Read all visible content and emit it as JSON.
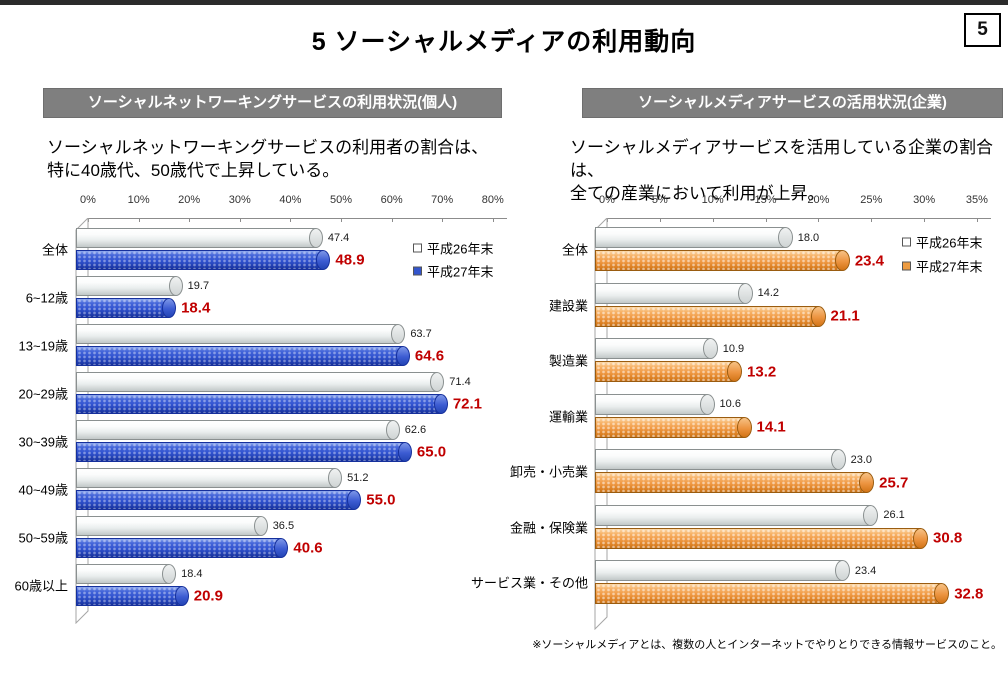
{
  "page": {
    "title": "5 ソーシャルメディアの利用動向",
    "page_number": "5",
    "footnote": "※ソーシャルメディアとは、複数の人とインターネットでやりとりできる情報サービスのこと。"
  },
  "colors": {
    "header_bg": "#7F7F7F",
    "series1_fill": "#FFFFFF",
    "series2_blue": "#3355CC",
    "series2_orange": "#ED9B40",
    "value2_label": "#C00000",
    "top_bar": "#2B2B2B"
  },
  "panels": [
    {
      "header": "ソーシャルネットワーキングサービスの利用状況(個人)",
      "description_line1": "ソーシャルネットワーキングサービスの利用者の割合は、",
      "description_line2": "特に40歳代、50歳代で上昇している。"
    },
    {
      "header": "ソーシャルメディアサービスの活用状況(企業)",
      "description_line1": "ソーシャルメディアサービスを活用している企業の割合は、",
      "description_line2": "全ての産業において利用が上昇。"
    }
  ],
  "chart_data": [
    {
      "id": "sns-individual",
      "type": "bar",
      "orientation": "horizontal",
      "style": "3d-cylinder",
      "title": "ソーシャルネットワーキングサービスの利用状況(個人)",
      "categories": [
        "全体",
        "6~12歳",
        "13~19歳",
        "20~29歳",
        "30~39歳",
        "40~49歳",
        "50~59歳",
        "60歳以上"
      ],
      "series": [
        {
          "name": "平成26年末",
          "color": "#FFFFFF",
          "values": [
            47.4,
            19.7,
            63.7,
            71.4,
            62.6,
            51.2,
            36.5,
            18.4
          ]
        },
        {
          "name": "平成27年末",
          "color": "#3355CC",
          "values": [
            48.9,
            18.4,
            64.6,
            72.1,
            65.0,
            55.0,
            40.6,
            20.9
          ]
        }
      ],
      "xlim": [
        0,
        80
      ],
      "tick_step": 10,
      "tick_suffix": "%",
      "grid": false,
      "legend_position": "right-top",
      "value_label_colors": [
        "#1A1A1A",
        "#C00000"
      ]
    },
    {
      "id": "media-company",
      "type": "bar",
      "orientation": "horizontal",
      "style": "3d-cylinder",
      "title": "ソーシャルメディアサービスの活用状況(企業)",
      "categories": [
        "全体",
        "建設業",
        "製造業",
        "運輸業",
        "卸売・小売業",
        "金融・保険業",
        "サービス業・その他"
      ],
      "series": [
        {
          "name": "平成26年末",
          "color": "#FFFFFF",
          "values": [
            18.0,
            14.2,
            10.9,
            10.6,
            23.0,
            26.1,
            23.4
          ]
        },
        {
          "name": "平成27年末",
          "color": "#ED9B40",
          "values": [
            23.4,
            21.1,
            13.2,
            14.1,
            25.7,
            30.8,
            32.8
          ]
        }
      ],
      "xlim": [
        0,
        35
      ],
      "tick_step": 5,
      "tick_suffix": "%",
      "grid": false,
      "legend_position": "right-top",
      "value_label_colors": [
        "#1A1A1A",
        "#C00000"
      ]
    }
  ]
}
